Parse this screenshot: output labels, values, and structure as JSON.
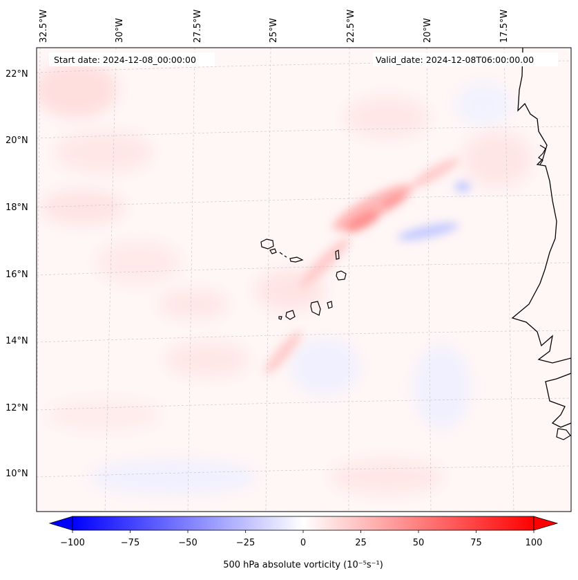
{
  "map": {
    "region": "Atlantic off West Africa (Cape Verde)",
    "start_date_text": "Start date: 2024-12-08_00:00:00",
    "valid_date_text": "Valid_date: 2024-12-08T06:00:00.00",
    "lon_labels": [
      "32.5°W",
      "30°W",
      "27.5°W",
      "25°W",
      "22.5°W",
      "20°W",
      "17.5°W"
    ],
    "lat_labels": [
      "22°N",
      "20°N",
      "18°N",
      "16°N",
      "14°N",
      "12°N",
      "10°N"
    ],
    "gridlines": true,
    "field": "500 hPa absolute vorticity",
    "colors": {
      "negative": "#0000ff",
      "neutral": "#ffffff",
      "positive": "#ff0000",
      "coastline": "#000000",
      "grid": "#bbbbbb"
    }
  },
  "colorbar": {
    "label": "500 hPa absolute vorticity (10⁻⁵s⁻¹)",
    "ticks": [
      "−100",
      "−75",
      "−50",
      "−25",
      "0",
      "25",
      "50",
      "75",
      "100"
    ],
    "range": [
      -100,
      100
    ],
    "extend": "both",
    "colormap": "bwr"
  }
}
